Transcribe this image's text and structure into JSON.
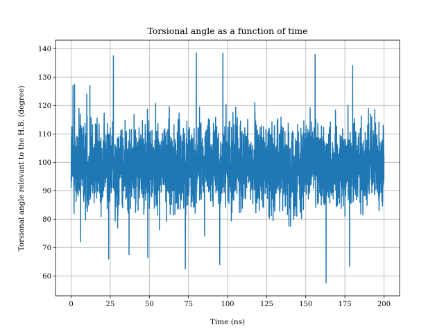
{
  "chart_data": {
    "type": "line",
    "title": "Torsional angle as a function of time",
    "xlabel": "Time (ns)",
    "ylabel": "Torsional angle relevant to the H.B. (degree)",
    "xlim": [
      -10,
      210
    ],
    "ylim": [
      53,
      143
    ],
    "xticks": [
      0,
      25,
      50,
      75,
      100,
      125,
      150,
      175,
      200
    ],
    "yticks": [
      60,
      70,
      80,
      90,
      100,
      110,
      120,
      130,
      140
    ],
    "grid": true,
    "series": [
      {
        "color": "#1f77b4",
        "x_range": [
          0,
          200
        ],
        "mean": 99,
        "typical_range": [
          78,
          122
        ],
        "extremes": [
          {
            "x": 0.5,
            "y": 112.5
          },
          {
            "x": 1.2,
            "y": 127
          },
          {
            "x": 2.2,
            "y": 127.5
          },
          {
            "x": 5,
            "y": 119
          },
          {
            "x": 10,
            "y": 124
          },
          {
            "x": 12,
            "y": 127
          },
          {
            "x": 27,
            "y": 137.5
          },
          {
            "x": 80,
            "y": 138.5
          },
          {
            "x": 97,
            "y": 138.5
          },
          {
            "x": 156,
            "y": 138
          },
          {
            "x": 180,
            "y": 134
          },
          {
            "x": 6,
            "y": 72
          },
          {
            "x": 24,
            "y": 66
          },
          {
            "x": 37,
            "y": 67.5
          },
          {
            "x": 49,
            "y": 66.5
          },
          {
            "x": 73,
            "y": 62.5
          },
          {
            "x": 95,
            "y": 64
          },
          {
            "x": 163,
            "y": 57.5
          },
          {
            "x": 178,
            "y": 63.5
          },
          {
            "x": 199.5,
            "y": 113
          }
        ]
      }
    ]
  }
}
